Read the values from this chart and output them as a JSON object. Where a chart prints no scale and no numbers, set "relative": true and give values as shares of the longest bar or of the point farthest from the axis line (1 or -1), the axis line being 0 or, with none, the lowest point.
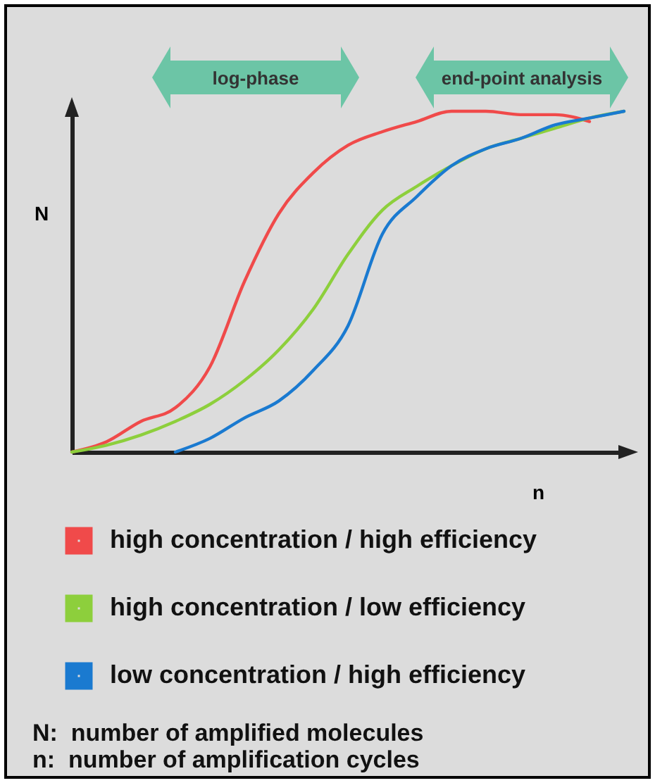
{
  "chart_data": {
    "type": "line",
    "relative": true,
    "xlabel": "n",
    "ylabel": "N",
    "legend": "bottom",
    "line_style": "solid",
    "categories": [
      null,
      null,
      null,
      null,
      null,
      null,
      null,
      null,
      null,
      null,
      null,
      null,
      null,
      null,
      null,
      null,
      null
    ],
    "series": [
      {
        "name": "high concentration / high efficiency",
        "color": "#f04a4a",
        "values": [
          0,
          0.03,
          0.09,
          0.13,
          0.25,
          0.5,
          0.7,
          0.82,
          0.9,
          0.94,
          0.97,
          1.0,
          1.0,
          0.99,
          0.99,
          0.97,
          null
        ]
      },
      {
        "name": "high concentration / low efficiency",
        "color": "#8dcf3c",
        "values": [
          0,
          0.02,
          0.05,
          0.09,
          0.14,
          0.21,
          0.3,
          0.42,
          0.58,
          0.71,
          0.78,
          0.84,
          0.89,
          0.92,
          0.95,
          0.98,
          1.0
        ]
      },
      {
        "name": "low concentration / high efficiency",
        "color": "#1a7ad0",
        "values": [
          null,
          null,
          null,
          0,
          0.04,
          0.1,
          0.15,
          0.24,
          0.37,
          0.64,
          0.75,
          0.84,
          0.89,
          0.92,
          0.96,
          0.98,
          1.0
        ]
      }
    ],
    "annotations": [
      "log-phase",
      "end-point analysis",
      "N:  number of amplified molecules",
      "n:  number of amplification cycles"
    ]
  }
}
